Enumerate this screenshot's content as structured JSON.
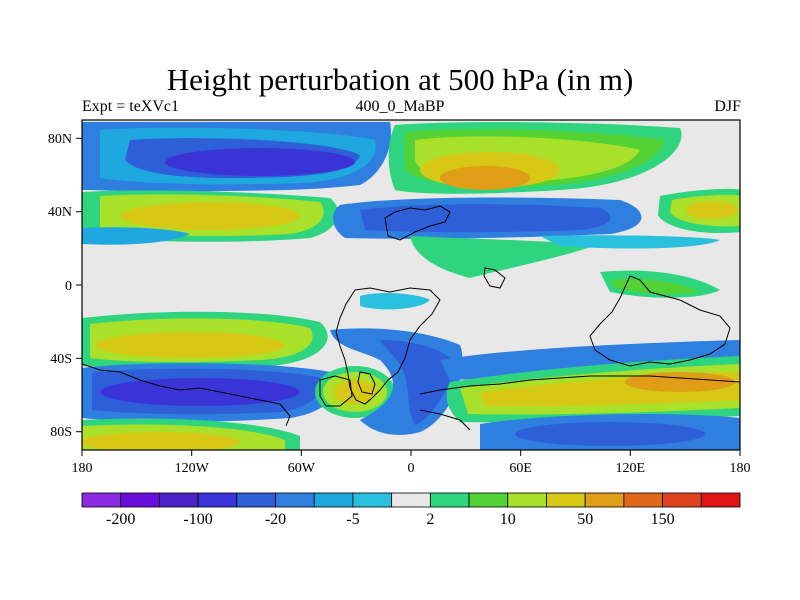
{
  "figure": {
    "title": "Height perturbation at 500 hPa (in m)",
    "left_label": "Expt = teXVc1",
    "center_label": "400_0_MaBP",
    "right_label": "DJF"
  },
  "map": {
    "lon_range": [
      -180,
      180
    ],
    "lat_range": [
      -90,
      90
    ],
    "lon_ticks": [
      {
        "value": -180,
        "label": "180"
      },
      {
        "value": -120,
        "label": "120W"
      },
      {
        "value": -60,
        "label": "60W"
      },
      {
        "value": 0,
        "label": "0"
      },
      {
        "value": 60,
        "label": "60E"
      },
      {
        "value": 120,
        "label": "120E"
      },
      {
        "value": 180,
        "label": "180"
      }
    ],
    "lat_ticks": [
      {
        "value": 80,
        "label": "80N"
      },
      {
        "value": 40,
        "label": "40N"
      },
      {
        "value": 0,
        "label": "0"
      },
      {
        "value": -40,
        "label": "40S"
      },
      {
        "value": -80,
        "label": "80S"
      }
    ]
  },
  "colorbar": {
    "colors": [
      "#8a2be2",
      "#6a0ddb",
      "#4b23c8",
      "#3a34d8",
      "#2f5fd8",
      "#2e7fe0",
      "#1fa7e0",
      "#28c0dc",
      "#e8e8e8",
      "#2ed47e",
      "#52d235",
      "#a9e12a",
      "#d6c814",
      "#e09d17",
      "#e0681c",
      "#e0411f",
      "#e01414"
    ],
    "labels": [
      {
        "after_box": 1,
        "text": "-200"
      },
      {
        "after_box": 3,
        "text": "-100"
      },
      {
        "after_box": 5,
        "text": "-20"
      },
      {
        "after_box": 7,
        "text": "-5"
      },
      {
        "after_box": 9,
        "text": "2"
      },
      {
        "after_box": 11,
        "text": "10"
      },
      {
        "after_box": 13,
        "text": "50"
      },
      {
        "after_box": 15,
        "text": "150"
      }
    ]
  },
  "colors": {
    "neutral": "#e8e8e8",
    "blue_dark": "#3a34d8",
    "blue": "#2f5fd8",
    "blue_mid": "#2e7fe0",
    "cyan": "#1fa7e0",
    "cyan_light": "#28c0dc",
    "green": "#2ed47e",
    "green2": "#52d235",
    "yellowgreen": "#a9e12a",
    "yellow": "#d6c814",
    "orange": "#e09d17"
  }
}
